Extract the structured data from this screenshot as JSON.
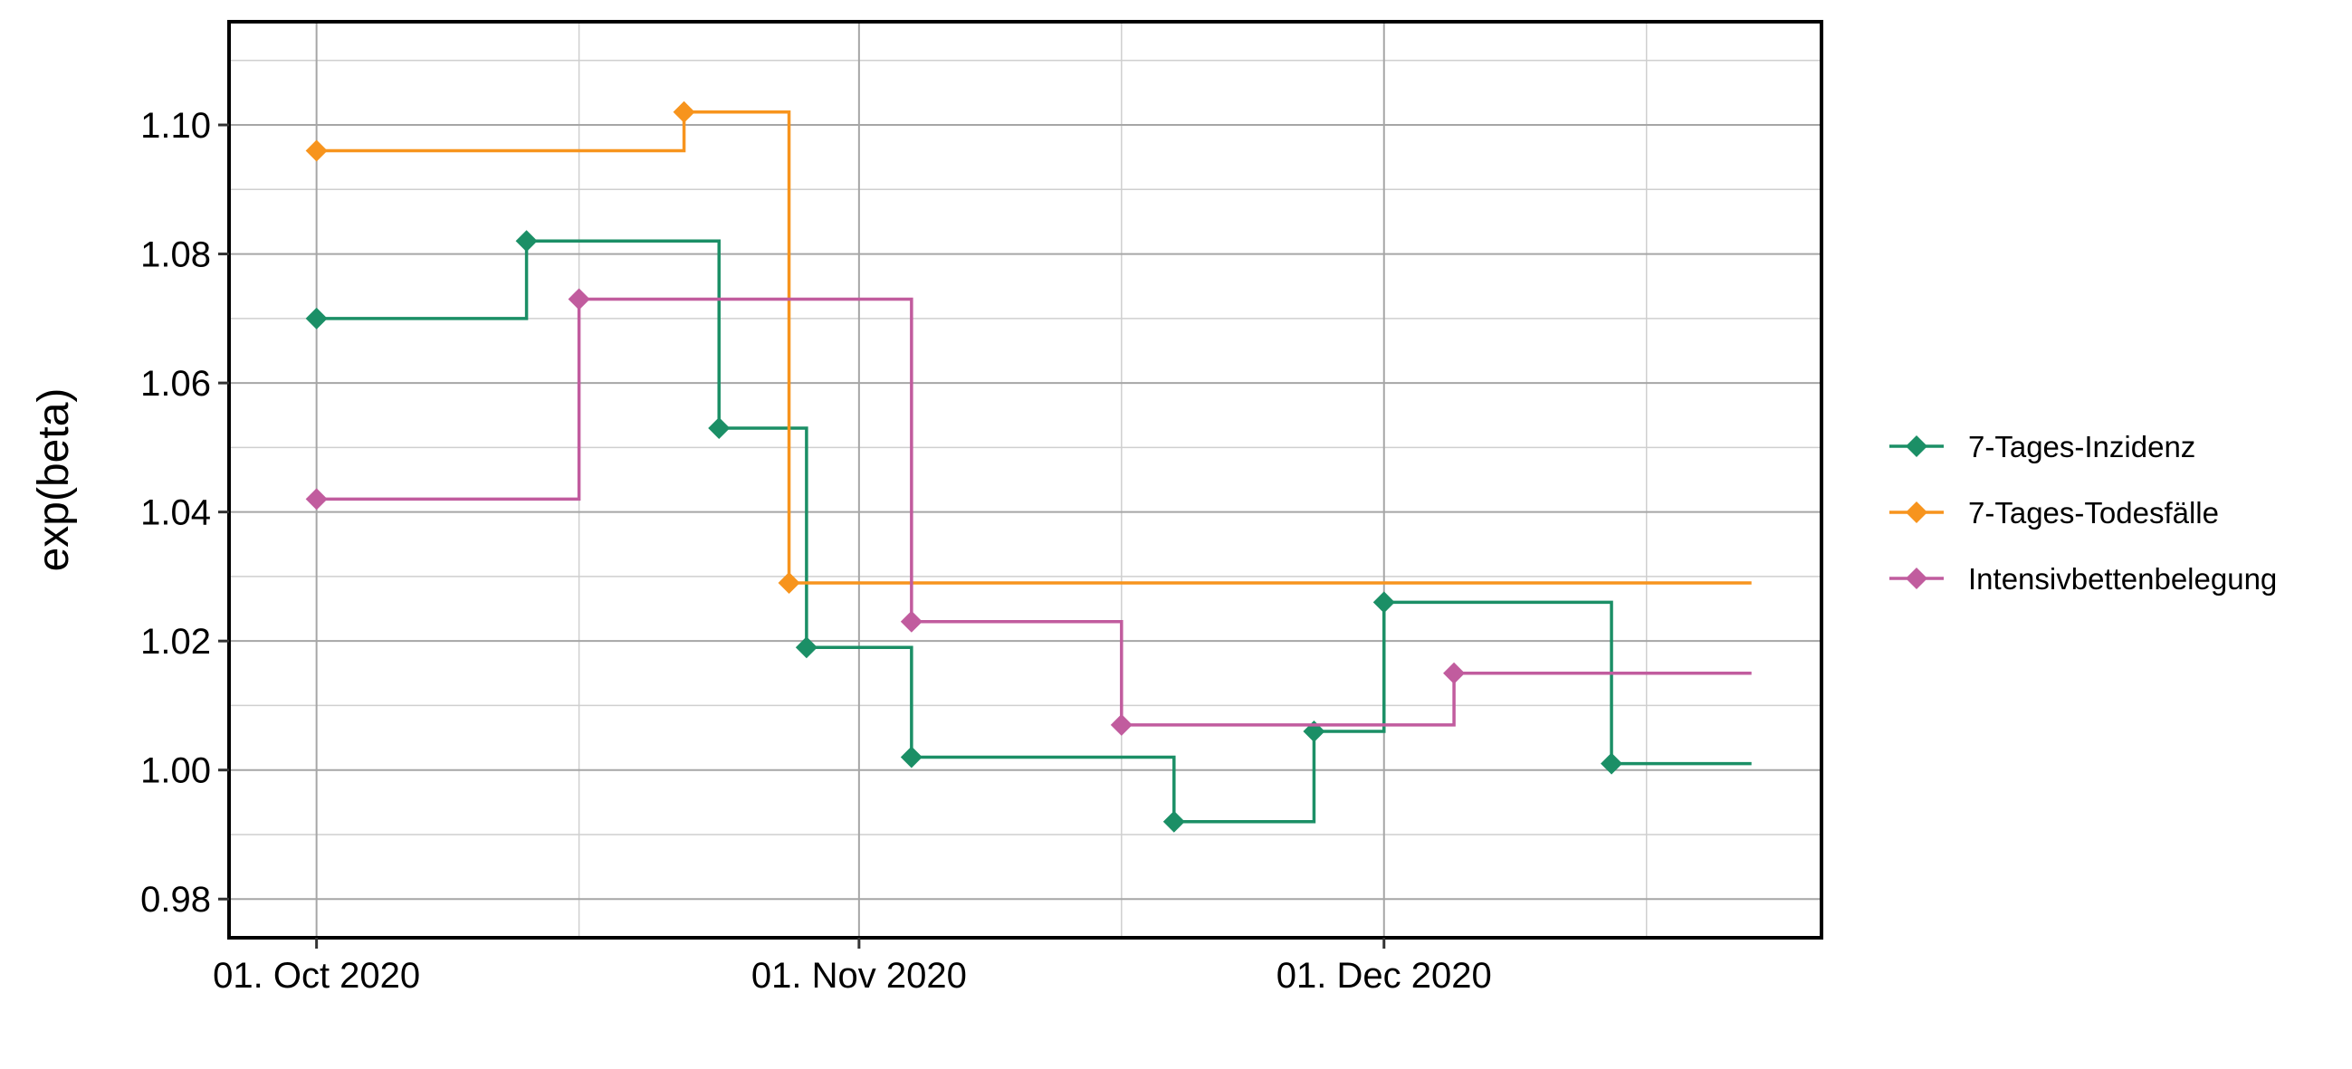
{
  "chart_data": {
    "type": "line",
    "step": "post",
    "title": "",
    "xlabel": "",
    "ylabel": "exp(beta)",
    "xlim": [
      "2020-09-26",
      "2020-12-26"
    ],
    "ylim": [
      0.974,
      1.116
    ],
    "x_ticks": [
      {
        "date": "2020-10-01",
        "label": "01. Oct 2020"
      },
      {
        "date": "2020-11-01",
        "label": "01. Nov 2020"
      },
      {
        "date": "2020-12-01",
        "label": "01. Dec 2020"
      }
    ],
    "x_minor_ticks": [
      "2020-10-16",
      "2020-11-16",
      "2020-12-16"
    ],
    "y_ticks": [
      {
        "value": 0.98,
        "label": "0.98"
      },
      {
        "value": 1.0,
        "label": "1.00"
      },
      {
        "value": 1.02,
        "label": "1.02"
      },
      {
        "value": 1.04,
        "label": "1.04"
      },
      {
        "value": 1.06,
        "label": "1.06"
      },
      {
        "value": 1.08,
        "label": "1.08"
      },
      {
        "value": 1.1,
        "label": "1.10"
      }
    ],
    "y_minor_ticks": [
      0.99,
      1.01,
      1.03,
      1.05,
      1.07,
      1.09,
      1.11
    ],
    "grid": true,
    "legend_position": "right",
    "end_date": "2020-12-22",
    "series": [
      {
        "name": "7-Tages-Inzidenz",
        "color": "#1b8f66",
        "points": [
          {
            "x": "2020-10-01",
            "y": 1.07
          },
          {
            "x": "2020-10-13",
            "y": 1.082
          },
          {
            "x": "2020-10-24",
            "y": 1.053
          },
          {
            "x": "2020-10-29",
            "y": 1.019
          },
          {
            "x": "2020-11-04",
            "y": 1.002
          },
          {
            "x": "2020-11-19",
            "y": 0.992
          },
          {
            "x": "2020-11-27",
            "y": 1.006
          },
          {
            "x": "2020-12-01",
            "y": 1.026
          },
          {
            "x": "2020-12-14",
            "y": 1.001
          }
        ]
      },
      {
        "name": "7-Tages-Todesfälle",
        "color": "#f7941d",
        "points": [
          {
            "x": "2020-10-01",
            "y": 1.096
          },
          {
            "x": "2020-10-22",
            "y": 1.102
          },
          {
            "x": "2020-10-28",
            "y": 1.029
          }
        ]
      },
      {
        "name": "Intensivbettenbelegung",
        "color": "#c15c9e",
        "points": [
          {
            "x": "2020-10-01",
            "y": 1.042
          },
          {
            "x": "2020-10-16",
            "y": 1.073
          },
          {
            "x": "2020-11-04",
            "y": 1.023
          },
          {
            "x": "2020-11-16",
            "y": 1.007
          },
          {
            "x": "2020-12-05",
            "y": 1.015
          }
        ]
      }
    ]
  }
}
